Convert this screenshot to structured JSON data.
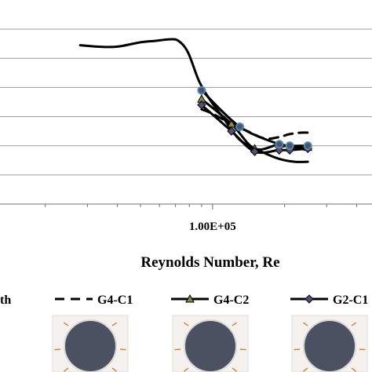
{
  "chart_data": {
    "type": "line",
    "title": "",
    "xlabel": "Reynolds Number, Re",
    "ylabel": "",
    "x_scale": "log",
    "x_tick_labels": [
      "1.00E+05"
    ],
    "xlim": [
      12000,
      500000
    ],
    "ylim": [
      0,
      1.4
    ],
    "grid": "horizontal",
    "legend_position": "bottom",
    "series": [
      {
        "name": "",
        "style": "solid",
        "marker": "none",
        "color": "#000000",
        "x": [
          28000,
          33000,
          40000,
          50000,
          58000,
          66000,
          72000,
          79000,
          88000,
          98000,
          110000,
          130000,
          160000,
          190000,
          220000,
          250000
        ],
        "y": [
          1.09,
          1.08,
          1.08,
          1.11,
          1.12,
          1.13,
          1.12,
          1.04,
          0.84,
          0.71,
          0.6,
          0.44,
          0.36,
          0.31,
          0.29,
          0.29
        ]
      },
      {
        "name": "G4-C1",
        "style": "dashed",
        "marker": "none",
        "color": "#000000",
        "x": [
          90000,
          100000,
          120000,
          140000,
          165000,
          190000,
          210000,
          235000,
          250000
        ],
        "y": [
          0.65,
          0.62,
          0.55,
          0.5,
          0.45,
          0.46,
          0.48,
          0.49,
          0.49
        ]
      },
      {
        "name": "G4-C2",
        "style": "solid",
        "marker": "triangle",
        "color": "#000000",
        "x": [
          90000,
          120000,
          150000,
          190000,
          210000,
          250000
        ],
        "y": [
          0.72,
          0.55,
          0.38,
          0.41,
          0.39,
          0.39
        ]
      },
      {
        "name": "G2-C1",
        "style": "solid",
        "marker": "diamond",
        "color": "#000000",
        "x": [
          90000,
          120000,
          150000,
          190000,
          210000,
          250000
        ],
        "y": [
          0.68,
          0.5,
          0.36,
          0.37,
          0.37,
          0.38
        ]
      },
      {
        "name": "",
        "style": "solid",
        "marker": "circle",
        "color": "#000000",
        "marker_color": "#4a90a4",
        "x": [
          90000,
          130000,
          190000,
          210000,
          250000
        ],
        "y": [
          0.78,
          0.53,
          0.41,
          0.4,
          0.4
        ]
      }
    ]
  },
  "legend": {
    "partial_label": "th",
    "items": [
      "G4-C1",
      "G4-C2",
      "G2-C1"
    ]
  },
  "colors": {
    "grid": "#9a9a9a",
    "line": "#000000",
    "marker_fill": "#5a4a7a",
    "marker_edge": "#4a90a4",
    "cylinder_fill": "#4b5160"
  }
}
